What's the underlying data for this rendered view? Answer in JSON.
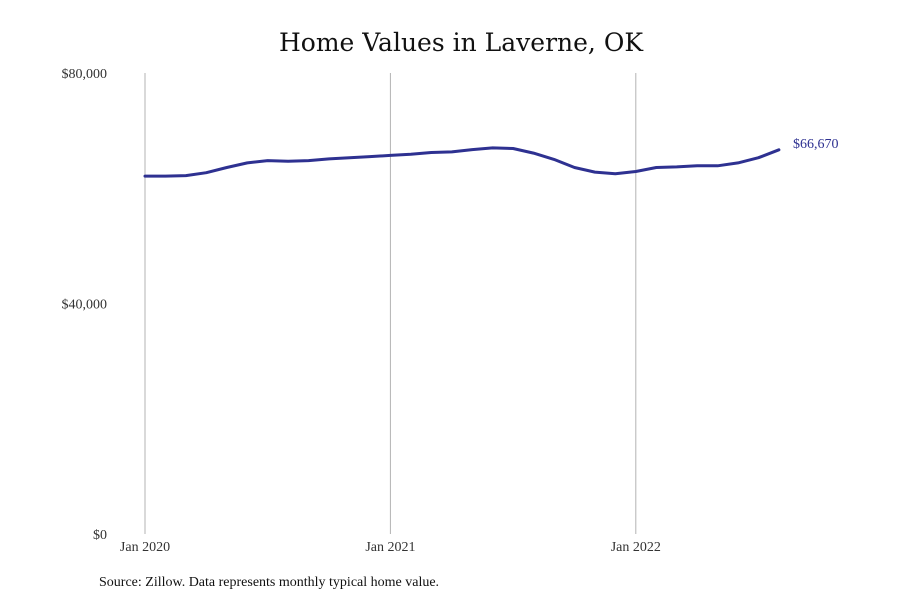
{
  "chart_data": {
    "type": "line",
    "title": "Home Values in Laverne, OK",
    "xlabel": "",
    "ylabel": "",
    "ylim": [
      0,
      80000
    ],
    "yticks": [
      "$0",
      "$40,000",
      "$80,000"
    ],
    "ytick_values": [
      0,
      40000,
      80000
    ],
    "xticks": [
      "Jan 2020",
      "Jan 2021",
      "Jan 2022"
    ],
    "xtick_index": [
      0,
      12,
      24
    ],
    "grid": "vertical at x ticks",
    "line_color": "#2e3191",
    "end_label": "$66,670",
    "series": [
      {
        "x": [
          "2020-01",
          "2020-02",
          "2020-03",
          "2020-04",
          "2020-05",
          "2020-06",
          "2020-07",
          "2020-08",
          "2020-09",
          "2020-10",
          "2020-11",
          "2020-12",
          "2021-01",
          "2021-02",
          "2021-03",
          "2021-04",
          "2021-05",
          "2021-06",
          "2021-07",
          "2021-08",
          "2021-09",
          "2021-10",
          "2021-11",
          "2021-12",
          "2022-01",
          "2022-02",
          "2022-03",
          "2022-04",
          "2022-05",
          "2022-06",
          "2022-07",
          "2022-08"
        ],
        "values": [
          62100,
          62100,
          62200,
          62700,
          63600,
          64400,
          64800,
          64700,
          64800,
          65100,
          65300,
          65500,
          65700,
          65900,
          66200,
          66300,
          66700,
          67000,
          66900,
          66100,
          65000,
          63600,
          62800,
          62500,
          62900,
          63600,
          63700,
          63900,
          63900,
          64400,
          65300,
          66670
        ]
      }
    ]
  },
  "source": "Source: Zillow. Data represents monthly typical home value."
}
